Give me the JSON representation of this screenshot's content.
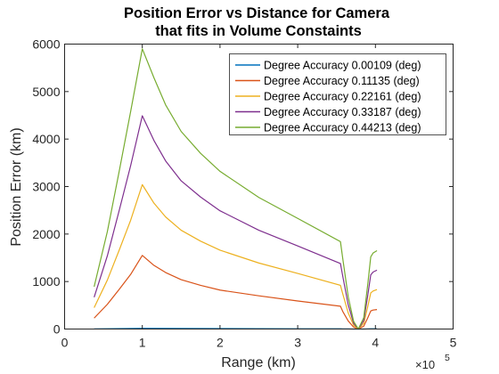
{
  "chart_data": {
    "type": "line",
    "title_lines": [
      "Position Error vs Distance for Camera",
      "that fits in Volume Constaints"
    ],
    "xlabel": "Range (km)",
    "ylabel": "Position Error (km)",
    "x_multiplier_base": "×10",
    "x_multiplier_exp": "5",
    "xlim": [
      0,
      500000
    ],
    "ylim": [
      0,
      6000
    ],
    "x_ticks": [
      0,
      100000,
      200000,
      300000,
      400000,
      500000
    ],
    "x_tick_labels": [
      "0",
      "1",
      "2",
      "3",
      "4",
      "5"
    ],
    "y_ticks": [
      0,
      1000,
      2000,
      3000,
      4000,
      5000,
      6000
    ],
    "y_tick_labels": [
      "0",
      "1000",
      "2000",
      "3000",
      "4000",
      "5000",
      "6000"
    ],
    "grid": false,
    "legend_position": "top-right",
    "series": [
      {
        "name": "Degree Accuracy 0.00109 (deg)",
        "color": "#0072BD",
        "x": [
          38000,
          100000,
          150000,
          200000,
          250000,
          300000,
          355000,
          358000,
          365000,
          372000,
          378000,
          385000,
          390000,
          394000,
          397000,
          402000
        ],
        "y": [
          2,
          15,
          12,
          10,
          8,
          6,
          5,
          4,
          2,
          0.5,
          0,
          0.5,
          3,
          5,
          6,
          6
        ]
      },
      {
        "name": "Degree Accuracy 0.11135 (deg)",
        "color": "#D95319",
        "x": [
          38000,
          55000,
          70000,
          85000,
          100000,
          115000,
          130000,
          150000,
          175000,
          200000,
          250000,
          300000,
          355000,
          358000,
          365000,
          372000,
          378000,
          385000,
          390000,
          394000,
          397000,
          402000
        ],
        "y": [
          230,
          520,
          830,
          1150,
          1550,
          1340,
          1190,
          1040,
          920,
          820,
          700,
          590,
          480,
          370,
          170,
          40,
          0,
          60,
          230,
          380,
          400,
          410
        ]
      },
      {
        "name": "Degree Accuracy 0.22161 (deg)",
        "color": "#EDB120",
        "x": [
          38000,
          55000,
          70000,
          85000,
          100000,
          115000,
          130000,
          150000,
          175000,
          200000,
          250000,
          300000,
          355000,
          358000,
          365000,
          372000,
          378000,
          385000,
          390000,
          394000,
          397000,
          402000
        ],
        "y": [
          450,
          1030,
          1650,
          2290,
          3040,
          2650,
          2360,
          2080,
          1850,
          1660,
          1390,
          1170,
          920,
          740,
          340,
          80,
          0,
          120,
          460,
          760,
          800,
          830
        ]
      },
      {
        "name": "Degree Accuracy 0.33187 (deg)",
        "color": "#7E2F8E",
        "x": [
          38000,
          55000,
          70000,
          85000,
          100000,
          115000,
          130000,
          150000,
          175000,
          200000,
          250000,
          300000,
          355000,
          358000,
          365000,
          372000,
          378000,
          385000,
          390000,
          394000,
          397000,
          402000
        ],
        "y": [
          670,
          1540,
          2480,
          3440,
          4490,
          3970,
          3540,
          3120,
          2780,
          2490,
          2080,
          1750,
          1380,
          1110,
          510,
          120,
          0,
          180,
          690,
          1140,
          1200,
          1240
        ]
      },
      {
        "name": "Degree Accuracy 0.44213 (deg)",
        "color": "#77AC30",
        "x": [
          38000,
          55000,
          70000,
          85000,
          100000,
          115000,
          130000,
          150000,
          175000,
          200000,
          250000,
          300000,
          355000,
          358000,
          365000,
          372000,
          378000,
          385000,
          390000,
          394000,
          397000,
          402000
        ],
        "y": [
          890,
          2050,
          3300,
          4580,
          5900,
          5290,
          4720,
          4160,
          3700,
          3320,
          2770,
          2330,
          1840,
          1480,
          680,
          160,
          0,
          240,
          920,
          1520,
          1600,
          1650
        ]
      }
    ]
  }
}
